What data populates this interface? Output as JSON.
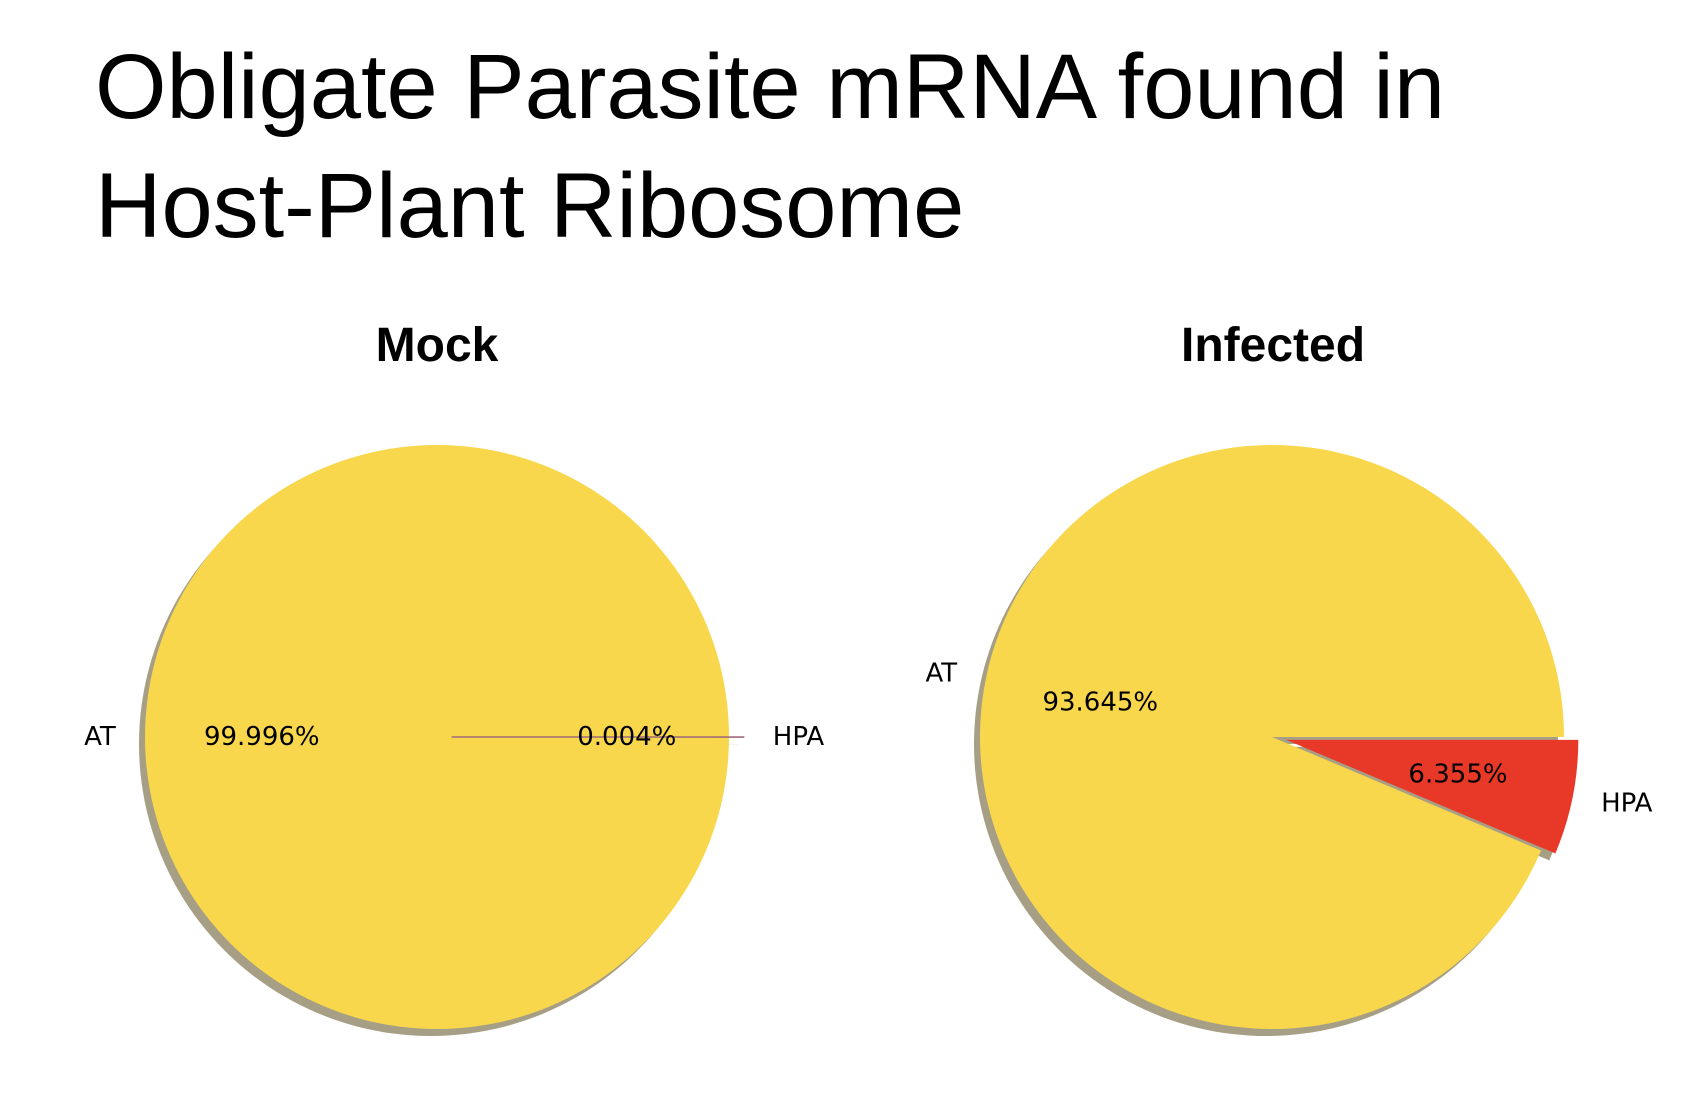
{
  "slide": {
    "title_line1": "Obligate Parasite mRNA found in",
    "title_line2": "Host-Plant Ribosome"
  },
  "colors": {
    "AT": "#f8d74c",
    "HPA": "#e83828",
    "shadow": "#8a7f5c"
  },
  "chart_data": [
    {
      "type": "pie",
      "title": "Mock",
      "categories": [
        "AT",
        "HPA"
      ],
      "values": [
        99.996,
        0.004
      ],
      "value_labels": [
        "99.996%",
        "0.004%"
      ],
      "explode": [
        "HPA"
      ],
      "shadow": true
    },
    {
      "type": "pie",
      "title": "Infected",
      "categories": [
        "AT",
        "HPA"
      ],
      "values": [
        93.645,
        6.355
      ],
      "value_labels": [
        "93.645%",
        "6.355%"
      ],
      "explode": [
        "HPA"
      ],
      "shadow": true
    }
  ]
}
